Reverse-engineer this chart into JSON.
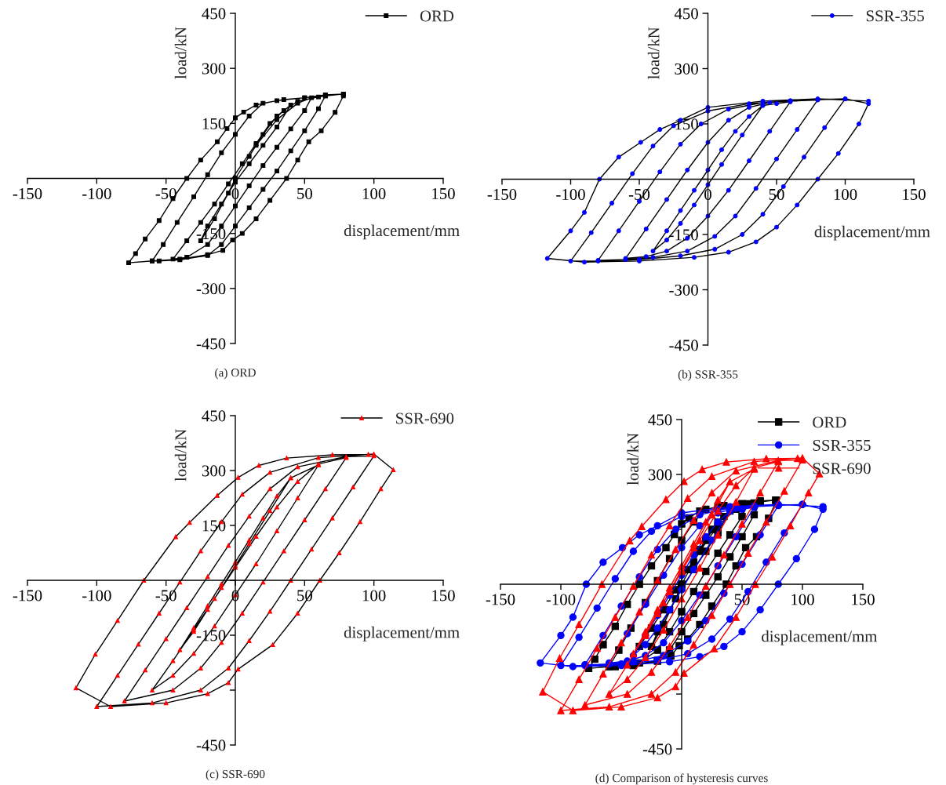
{
  "chart_data": [
    {
      "type": "line",
      "title": "(a) ORD",
      "xlabel": "displacement/mm",
      "ylabel": "load/kN",
      "xlim": [
        -150,
        150
      ],
      "ylim": [
        -450,
        450
      ],
      "xticks": [
        -150,
        -100,
        -50,
        0,
        50,
        100,
        150
      ],
      "yticks": [
        -450,
        -300,
        -150,
        {
          "value": 0,
          "label": null
        },
        150,
        300,
        450
      ],
      "legend": "top right",
      "grid": false,
      "series": [
        {
          "name": "ORD",
          "color": "#000000",
          "marker": "square",
          "x": [
            0,
            10,
            20,
            30,
            40,
            30,
            20,
            10,
            0,
            -10,
            -20,
            -25,
            -15,
            -5,
            0,
            15,
            30,
            45,
            55,
            50,
            40,
            30,
            20,
            10,
            0,
            -10,
            -20,
            -35,
            -45,
            -35,
            -25,
            -15,
            -5,
            5,
            15,
            25,
            35,
            45,
            60,
            65,
            60,
            50,
            40,
            30,
            20,
            10,
            0,
            -10,
            -20,
            -40,
            -55,
            -60,
            -52,
            -42,
            -30,
            -20,
            -10,
            0,
            10,
            20,
            35,
            50,
            65,
            78,
            78,
            72,
            62,
            53,
            45,
            37,
            25,
            15,
            5,
            -2,
            -9,
            -20,
            -40,
            -60,
            -77,
            -72,
            -65,
            -55,
            -45,
            -35,
            -25,
            -13,
            -6,
            0,
            6,
            15,
            30,
            50,
            65,
            78
          ],
          "values": [
            0,
            60,
            120,
            170,
            200,
            140,
            90,
            40,
            -10,
            -70,
            -130,
            -170,
            -110,
            -40,
            0,
            90,
            160,
            205,
            220,
            185,
            135,
            85,
            35,
            -20,
            -75,
            -130,
            -180,
            -215,
            -220,
            -170,
            -120,
            -70,
            -15,
            40,
            95,
            150,
            185,
            210,
            222,
            225,
            190,
            130,
            75,
            20,
            -30,
            -80,
            -130,
            -180,
            -210,
            -222,
            -225,
            -225,
            -180,
            -120,
            -50,
            10,
            70,
            120,
            170,
            205,
            215,
            220,
            228,
            230,
            225,
            180,
            130,
            100,
            50,
            0,
            -60,
            -110,
            -150,
            -168,
            -196,
            -208,
            -220,
            -225,
            -230,
            -205,
            -165,
            -115,
            -55,
            0,
            50,
            100,
            136,
            165,
            181,
            200,
            212,
            220,
            225,
            230
          ]
        }
      ]
    },
    {
      "type": "line",
      "title": "(b) SSR-355",
      "xlabel": "displacement/mm",
      "ylabel": "load/kN",
      "xlim": [
        -150,
        150
      ],
      "ylim": [
        -450,
        450
      ],
      "xticks": [
        -150,
        -100,
        -50,
        0,
        50,
        100,
        150
      ],
      "yticks": [
        -450,
        -300,
        -150,
        {
          "value": 0,
          "label": null
        },
        150,
        300,
        450
      ],
      "legend": "top right",
      "grid": false,
      "series": [
        {
          "name": "SSR-355",
          "color": "#0000ff",
          "marker": "circle",
          "x": [
            40,
            25,
            10,
            0,
            -10,
            -20,
            -30,
            -40,
            -30,
            -20,
            -10,
            0,
            10,
            20,
            30,
            40,
            50,
            60,
            45,
            30,
            15,
            0,
            -15,
            -30,
            -45,
            -60,
            -45,
            -30,
            -15,
            0,
            15,
            30,
            45,
            60,
            80,
            65,
            50,
            35,
            20,
            5,
            -15,
            -40,
            -60,
            -80,
            -65,
            -50,
            -35,
            -20,
            -5,
            15,
            40,
            60,
            80,
            100,
            85,
            70,
            55,
            40,
            25,
            5,
            -20,
            -50,
            -80,
            -100,
            -85,
            -70,
            -55,
            -40,
            -25,
            0,
            30,
            60,
            100,
            117,
            110,
            95,
            80,
            65,
            50,
            35,
            15,
            -10,
            -50,
            -90,
            -117,
            -100,
            -90,
            -79,
            -65,
            -49,
            -35,
            -20,
            0,
            40,
            80,
            117
          ],
          "values": [
            200,
            120,
            40,
            -15,
            -70,
            -120,
            -165,
            -195,
            -140,
            -85,
            -30,
            25,
            80,
            130,
            170,
            200,
            205,
            210,
            130,
            50,
            -30,
            -100,
            -160,
            -195,
            -210,
            -215,
            -135,
            -55,
            25,
            100,
            160,
            195,
            208,
            212,
            215,
            135,
            55,
            -25,
            -100,
            -155,
            -195,
            -212,
            -218,
            -220,
            -140,
            -60,
            20,
            95,
            150,
            190,
            208,
            213,
            216,
            218,
            140,
            60,
            -20,
            -95,
            -150,
            -190,
            -208,
            -218,
            -222,
            -222,
            -145,
            -65,
            15,
            90,
            145,
            185,
            205,
            213,
            218,
            205,
            150,
            70,
            0,
            -70,
            -130,
            -170,
            -198,
            -212,
            -222,
            -225,
            -215,
            -140,
            -90,
            0,
            60,
            100,
            135,
            160,
            195,
            212,
            218,
            212
          ]
        }
      ]
    },
    {
      "type": "line",
      "title": "(c) SSR-690",
      "xlabel": "displacement/mm",
      "ylabel": "load/kN",
      "xlim": [
        -150,
        150
      ],
      "ylim": [
        -450,
        450
      ],
      "xticks": [
        -150,
        -100,
        -50,
        0,
        50,
        100,
        150
      ],
      "yticks": [
        -450,
        {
          "value": -300,
          "label": null
        },
        -150,
        {
          "value": 0,
          "label": null
        },
        150,
        300,
        450
      ],
      "legend": "top right",
      "grid": false,
      "series": [
        {
          "name": "SSR-690",
          "color": "#ff0000",
          "marker": "triangle",
          "x": [
            40,
            25,
            10,
            0,
            -10,
            -20,
            -30,
            -40,
            -30,
            -20,
            -10,
            0,
            10,
            20,
            30,
            40,
            60,
            45,
            30,
            15,
            0,
            -15,
            -30,
            -45,
            -60,
            -45,
            -30,
            -15,
            0,
            15,
            30,
            45,
            60,
            80,
            65,
            50,
            35,
            20,
            5,
            -10,
            -25,
            -45,
            -80,
            -65,
            -50,
            -35,
            -20,
            -5,
            10,
            25,
            45,
            80,
            100,
            85,
            70,
            55,
            40,
            25,
            10,
            -5,
            -25,
            -60,
            -100,
            -85,
            -70,
            -55,
            -40,
            -25,
            -10,
            5,
            25,
            60,
            100,
            114,
            105,
            90,
            75,
            61,
            45,
            27,
            2,
            -5,
            -20,
            -50,
            -90,
            -115,
            -101,
            -85,
            -66,
            -43,
            -33,
            -13,
            2,
            17,
            37,
            70,
            96
          ],
          "values": [
            280,
            190,
            100,
            40,
            -20,
            -80,
            -140,
            -190,
            -130,
            -70,
            -10,
            50,
            110,
            170,
            230,
            280,
            315,
            225,
            135,
            45,
            -40,
            -125,
            -200,
            -260,
            -300,
            -220,
            -135,
            -50,
            35,
            120,
            200,
            270,
            318,
            335,
            250,
            165,
            80,
            -5,
            -90,
            -170,
            -240,
            -300,
            -330,
            -245,
            -160,
            -75,
            10,
            95,
            175,
            250,
            310,
            338,
            340,
            255,
            170,
            85,
            0,
            -85,
            -165,
            -240,
            -300,
            -335,
            -345,
            -260,
            -175,
            -90,
            -5,
            80,
            160,
            235,
            295,
            335,
            345,
            302,
            250,
            160,
            75,
            0,
            -90,
            -176,
            -243,
            -280,
            -310,
            -335,
            -345,
            -294,
            -202,
            -110,
            0,
            119,
            158,
            232,
            281,
            314,
            334,
            343,
            344
          ]
        }
      ]
    },
    {
      "type": "line",
      "title": "(d) Comparison of hysteresis curves",
      "xlabel": "displacement/mm",
      "ylabel": "load/kN",
      "xlim": [
        -150,
        150
      ],
      "ylim": [
        -450,
        450
      ],
      "xticks": [
        -150,
        -100,
        {
          "value": -50,
          "label": null
        },
        {
          "value": 0,
          "label": null
        },
        50,
        100,
        150
      ],
      "yticks": [
        -450,
        {
          "value": -300,
          "label": null
        },
        {
          "value": -150,
          "label": null
        },
        {
          "value": 0,
          "label": null
        },
        {
          "value": 150,
          "label": null
        },
        300,
        450
      ],
      "legend": "top right",
      "grid": false,
      "series": [
        {
          "name": "ORD",
          "color": "#000000",
          "marker": "square",
          "x": [
            0,
            10,
            20,
            30,
            40,
            30,
            20,
            10,
            0,
            -10,
            -20,
            -25,
            -15,
            -5,
            0,
            15,
            30,
            45,
            55,
            50,
            40,
            30,
            20,
            10,
            0,
            -10,
            -20,
            -35,
            -45,
            -35,
            -25,
            -15,
            -5,
            5,
            15,
            25,
            35,
            45,
            60,
            65,
            60,
            50,
            40,
            30,
            20,
            10,
            0,
            -10,
            -20,
            -40,
            -55,
            -60,
            -52,
            -42,
            -30,
            -20,
            -10,
            0,
            10,
            20,
            35,
            50,
            65,
            78,
            78,
            72,
            62,
            53,
            45,
            37,
            25,
            15,
            5,
            -2,
            -9,
            -20,
            -40,
            -60,
            -77,
            -72,
            -65,
            -55,
            -45,
            -35,
            -25,
            -13,
            -6,
            0,
            6,
            15,
            30,
            50,
            65,
            78
          ],
          "values": [
            0,
            60,
            120,
            170,
            200,
            140,
            90,
            40,
            -10,
            -70,
            -130,
            -170,
            -110,
            -40,
            0,
            90,
            160,
            205,
            220,
            185,
            135,
            85,
            35,
            -20,
            -75,
            -130,
            -180,
            -215,
            -220,
            -170,
            -120,
            -70,
            -15,
            40,
            95,
            150,
            185,
            210,
            222,
            225,
            190,
            130,
            75,
            20,
            -30,
            -80,
            -130,
            -180,
            -210,
            -222,
            -225,
            -225,
            -180,
            -120,
            -50,
            10,
            70,
            120,
            170,
            205,
            215,
            220,
            228,
            230,
            225,
            180,
            130,
            100,
            50,
            0,
            -60,
            -110,
            -150,
            -168,
            -196,
            -208,
            -220,
            -225,
            -230,
            -205,
            -165,
            -115,
            -55,
            0,
            50,
            100,
            136,
            165,
            181,
            200,
            212,
            220,
            225,
            230
          ]
        },
        {
          "name": "SSR-355",
          "color": "#0000ff",
          "marker": "circle",
          "x": [
            40,
            25,
            10,
            0,
            -10,
            -20,
            -30,
            -40,
            -30,
            -20,
            -10,
            0,
            10,
            20,
            30,
            40,
            50,
            60,
            45,
            30,
            15,
            0,
            -15,
            -30,
            -45,
            -60,
            -45,
            -30,
            -15,
            0,
            15,
            30,
            45,
            60,
            80,
            65,
            50,
            35,
            20,
            5,
            -15,
            -40,
            -60,
            -80,
            -65,
            -50,
            -35,
            -20,
            -5,
            15,
            40,
            60,
            80,
            100,
            85,
            70,
            55,
            40,
            25,
            5,
            -20,
            -50,
            -80,
            -100,
            -85,
            -70,
            -55,
            -40,
            -25,
            0,
            30,
            60,
            100,
            117,
            110,
            95,
            80,
            65,
            50,
            35,
            15,
            -10,
            -50,
            -90,
            -117,
            -100,
            -90,
            -79,
            -65,
            -49,
            -35,
            -20,
            0,
            40,
            80,
            117
          ],
          "values": [
            200,
            120,
            40,
            -15,
            -70,
            -120,
            -165,
            -195,
            -140,
            -85,
            -30,
            25,
            80,
            130,
            170,
            200,
            205,
            210,
            130,
            50,
            -30,
            -100,
            -160,
            -195,
            -210,
            -215,
            -135,
            -55,
            25,
            100,
            160,
            195,
            208,
            212,
            215,
            135,
            55,
            -25,
            -100,
            -155,
            -195,
            -212,
            -218,
            -220,
            -140,
            -60,
            20,
            95,
            150,
            190,
            208,
            213,
            216,
            218,
            140,
            60,
            -20,
            -95,
            -150,
            -190,
            -208,
            -218,
            -222,
            -222,
            -145,
            -65,
            15,
            90,
            145,
            185,
            205,
            213,
            218,
            205,
            150,
            70,
            0,
            -70,
            -130,
            -170,
            -198,
            -212,
            -222,
            -225,
            -215,
            -140,
            -90,
            0,
            60,
            100,
            135,
            160,
            195,
            212,
            218,
            212
          ]
        },
        {
          "name": "SSR-690",
          "color": "#ff0000",
          "marker": "triangle",
          "x": [
            40,
            25,
            10,
            0,
            -10,
            -20,
            -30,
            -40,
            -30,
            -20,
            -10,
            0,
            10,
            20,
            30,
            40,
            60,
            45,
            30,
            15,
            0,
            -15,
            -30,
            -45,
            -60,
            -45,
            -30,
            -15,
            0,
            15,
            30,
            45,
            60,
            80,
            65,
            50,
            35,
            20,
            5,
            -10,
            -25,
            -45,
            -80,
            -65,
            -50,
            -35,
            -20,
            -5,
            10,
            25,
            45,
            80,
            100,
            85,
            70,
            55,
            40,
            25,
            10,
            -5,
            -25,
            -60,
            -100,
            -85,
            -70,
            -55,
            -40,
            -25,
            -10,
            5,
            25,
            60,
            100,
            114,
            105,
            90,
            75,
            61,
            45,
            27,
            2,
            -5,
            -20,
            -50,
            -90,
            -115,
            -101,
            -85,
            -66,
            -43,
            -33,
            -13,
            2,
            17,
            37,
            70,
            96
          ],
          "values": [
            280,
            190,
            100,
            40,
            -20,
            -80,
            -140,
            -190,
            -130,
            -70,
            -10,
            50,
            110,
            170,
            230,
            280,
            315,
            225,
            135,
            45,
            -40,
            -125,
            -200,
            -260,
            -300,
            -220,
            -135,
            -50,
            35,
            120,
            200,
            270,
            318,
            335,
            250,
            165,
            80,
            -5,
            -90,
            -170,
            -240,
            -300,
            -330,
            -245,
            -160,
            -75,
            10,
            95,
            175,
            250,
            310,
            338,
            340,
            255,
            170,
            85,
            0,
            -85,
            -165,
            -240,
            -300,
            -335,
            -345,
            -260,
            -175,
            -90,
            -5,
            80,
            160,
            235,
            295,
            335,
            345,
            302,
            250,
            160,
            75,
            0,
            -90,
            -176,
            -243,
            -280,
            -310,
            -335,
            -345,
            -294,
            -202,
            -110,
            0,
            119,
            158,
            232,
            281,
            314,
            334,
            343,
            344
          ]
        }
      ]
    }
  ]
}
